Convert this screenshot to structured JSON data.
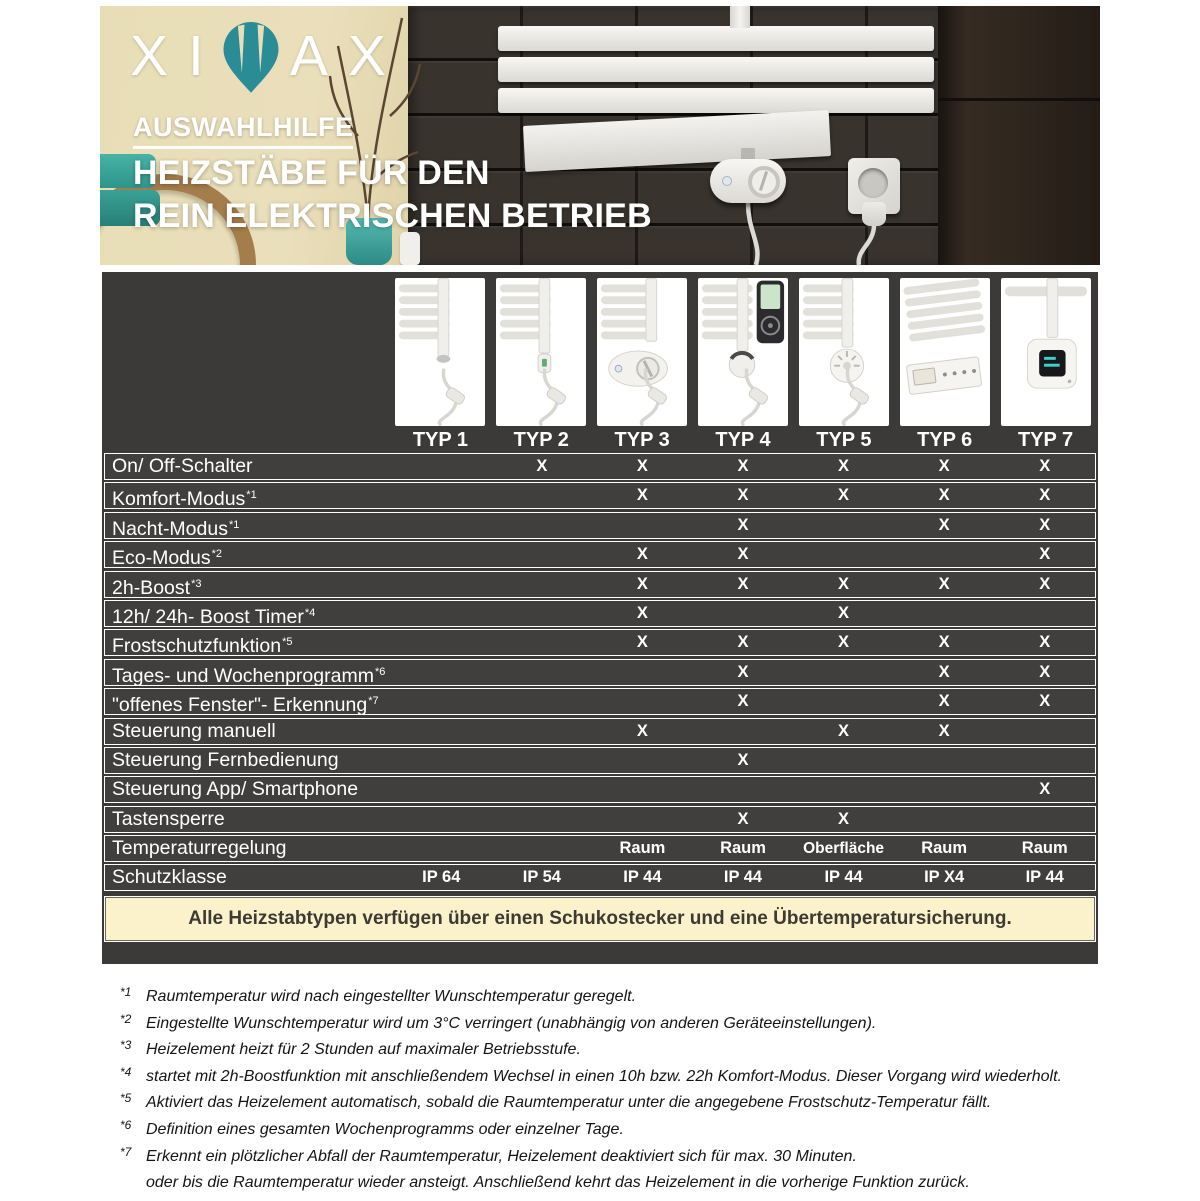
{
  "hero": {
    "logo_pre": "XI",
    "logo_post": "AX",
    "kicker": "AUSWAHLHILFE",
    "title_line1": "HEIZSTÄBE FÜR DEN",
    "title_line2": "REIN ELEKTRISCHEN BETRIEB"
  },
  "colors": {
    "logo_teal": "#2a8c94",
    "panel_dark": "#3b3a39",
    "banner_bg": "#fbf2cb",
    "banner_text": "#3c3a33",
    "row_text": "#ffffff"
  },
  "table": {
    "columns": [
      "TYP 1",
      "TYP 2",
      "TYP 3",
      "TYP 4",
      "TYP 5",
      "TYP 6",
      "TYP 7"
    ],
    "column_icons": [
      "heating-rod-icon",
      "heating-rod-switch-icon",
      "dial-control-icon",
      "remote-control-icon",
      "thermostat-knob-icon",
      "control-panel-icon",
      "smart-box-icon"
    ],
    "rows": [
      {
        "label": "On/ Off-Schalter",
        "sup": "",
        "cells": [
          "",
          "X",
          "X",
          "X",
          "X",
          "X",
          "X"
        ]
      },
      {
        "label": "Komfort-Modus",
        "sup": "*1",
        "cells": [
          "",
          "",
          "X",
          "X",
          "X",
          "X",
          "X"
        ]
      },
      {
        "label": "Nacht-Modus",
        "sup": "*1",
        "cells": [
          "",
          "",
          "",
          "X",
          "",
          "X",
          "X"
        ]
      },
      {
        "label": "Eco-Modus",
        "sup": "*2",
        "cells": [
          "",
          "",
          "X",
          "X",
          "",
          "",
          "X"
        ]
      },
      {
        "label": "2h-Boost",
        "sup": "*3",
        "cells": [
          "",
          "",
          "X",
          "X",
          "X",
          "X",
          "X"
        ]
      },
      {
        "label": "12h/ 24h- Boost Timer",
        "sup": "*4",
        "cells": [
          "",
          "",
          "X",
          "",
          "X",
          "",
          ""
        ]
      },
      {
        "label": "Frostschutzfunktion",
        "sup": "*5",
        "cells": [
          "",
          "",
          "X",
          "X",
          "X",
          "X",
          "X"
        ]
      },
      {
        "label": "Tages- und Wochenprogramm",
        "sup": "*6",
        "cells": [
          "",
          "",
          "",
          "X",
          "",
          "X",
          "X"
        ]
      },
      {
        "label": "\"offenes Fenster\"- Erkennung",
        "sup": "*7",
        "cells": [
          "",
          "",
          "",
          "X",
          "",
          "X",
          "X"
        ]
      },
      {
        "label": "Steuerung manuell",
        "sup": "",
        "cells": [
          "",
          "",
          "X",
          "",
          "X",
          "X",
          ""
        ]
      },
      {
        "label": "Steuerung Fernbedienung",
        "sup": "",
        "cells": [
          "",
          "",
          "",
          "X",
          "",
          "",
          ""
        ]
      },
      {
        "label": "Steuerung App/ Smartphone",
        "sup": "",
        "cells": [
          "",
          "",
          "",
          "",
          "",
          "",
          "X"
        ]
      },
      {
        "label": "Tastensperre",
        "sup": "",
        "cells": [
          "",
          "",
          "",
          "X",
          "X",
          "",
          ""
        ]
      },
      {
        "label": "Temperaturregelung",
        "sup": "",
        "cells": [
          "",
          "",
          "Raum",
          "Raum",
          "Oberfläche",
          "Raum",
          "Raum"
        ]
      },
      {
        "label": "Schutzklasse",
        "sup": "",
        "cells": [
          "IP 64",
          "IP 54",
          "IP 44",
          "IP 44",
          "IP 44",
          "IP X4",
          "IP 44"
        ]
      }
    ],
    "banner": "Alle Heizstabtypen verfügen über einen Schukostecker und eine Übertemperatursicherung."
  },
  "footnotes": [
    {
      "marker": "*1",
      "lines": [
        "Raumtemperatur wird nach eingestellter Wunschtemperatur geregelt."
      ]
    },
    {
      "marker": "*2",
      "lines": [
        "Eingestellte Wunschtemperatur wird um 3°C verringert (unabhängig von anderen Geräteeinstellungen)."
      ]
    },
    {
      "marker": "*3",
      "lines": [
        "Heizelement heizt für 2 Stunden auf maximaler Betriebsstufe."
      ]
    },
    {
      "marker": "*4",
      "lines": [
        "startet mit 2h-Boostfunktion mit anschließendem Wechsel in einen 10h bzw. 22h Komfort-Modus. Dieser Vorgang wird wiederholt."
      ]
    },
    {
      "marker": "*5",
      "lines": [
        "Aktiviert das Heizelement automatisch, sobald die Raumtemperatur unter die angegebene Frostschutz-Temperatur fällt."
      ]
    },
    {
      "marker": "*6",
      "lines": [
        "Definition eines gesamten Wochenprogramms oder einzelner Tage."
      ]
    },
    {
      "marker": "*7",
      "lines": [
        "Erkennt ein plötzlicher Abfall der Raumtemperatur, Heizelement deaktiviert sich für max. 30 Minuten.",
        "oder bis die Raumtemperatur wieder ansteigt. Anschließend kehrt das Heizelement in die vorherige Funktion zurück."
      ]
    }
  ]
}
